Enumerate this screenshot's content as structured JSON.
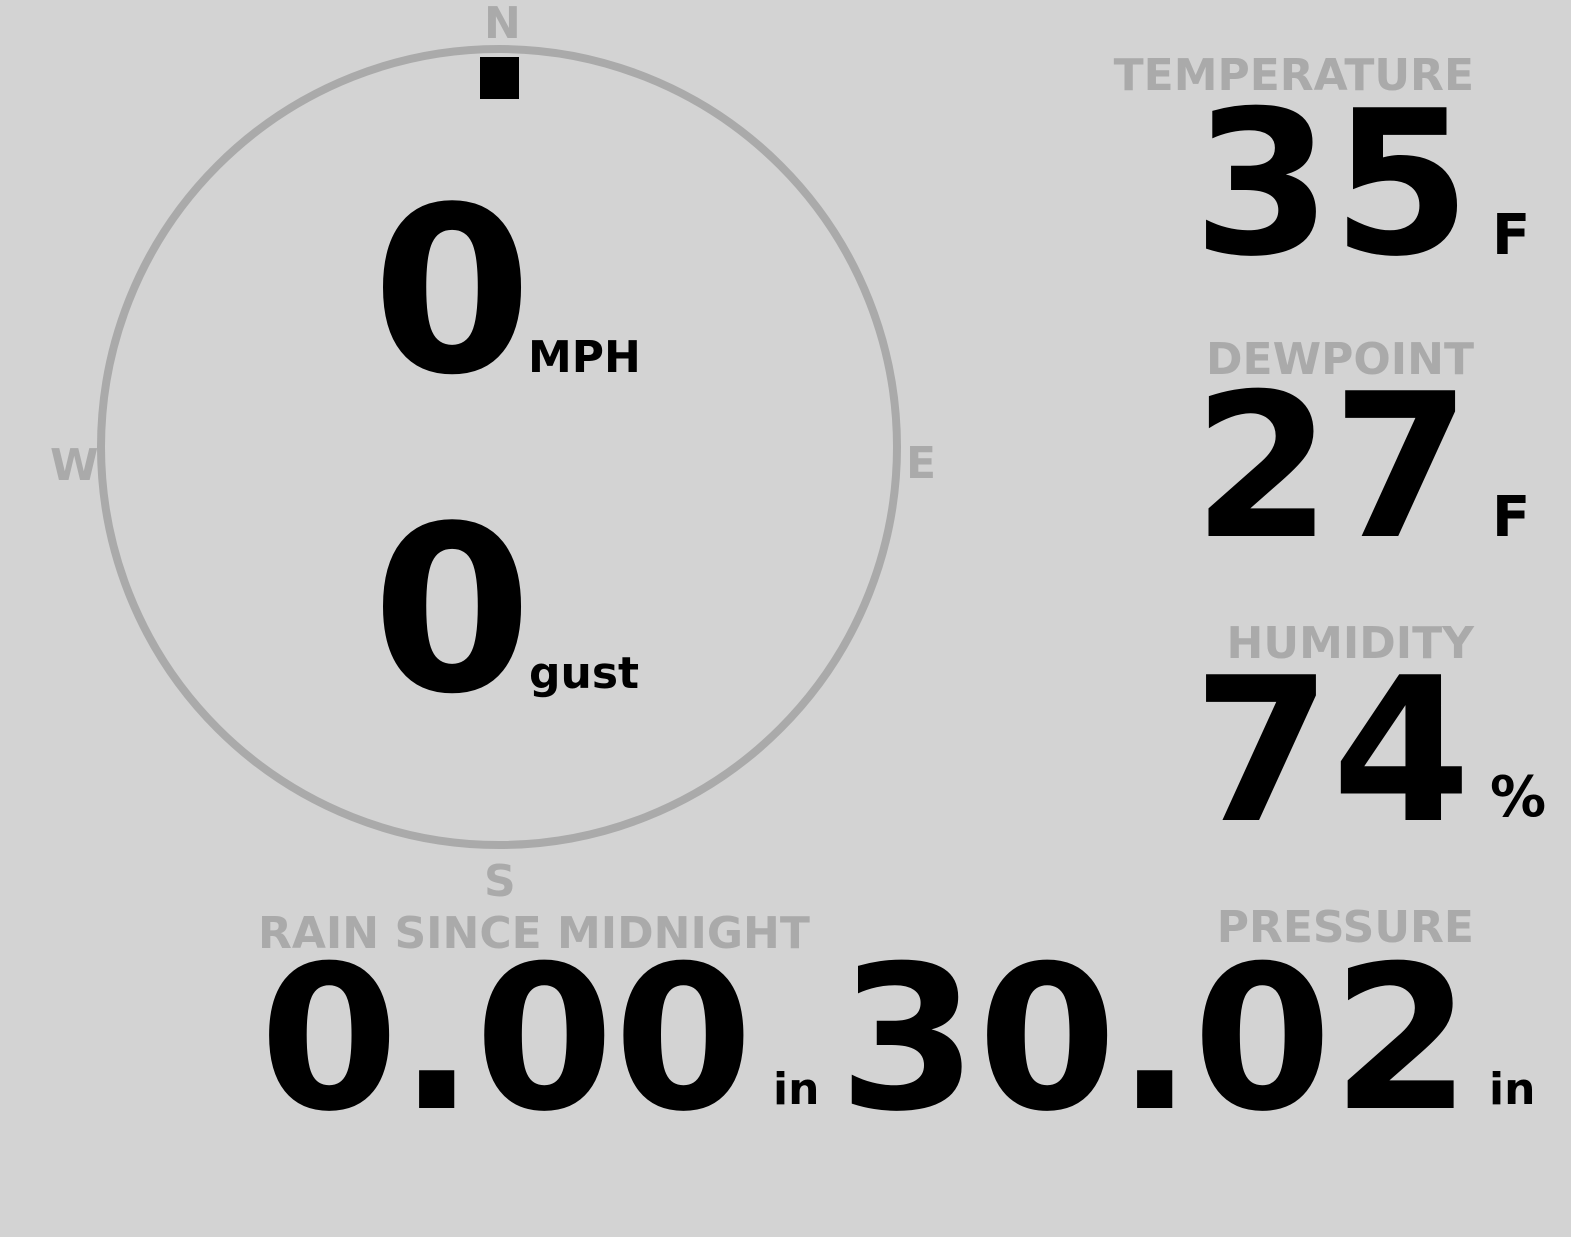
{
  "compass": {
    "north": "N",
    "south": "S",
    "east": "E",
    "west": "W",
    "wind_direction_deg": 0,
    "ring_color": "#aaaaaa",
    "indicator_color": "#000000"
  },
  "wind": {
    "speed": "0",
    "speed_unit": "MPH",
    "gust": "0",
    "gust_unit": "gust"
  },
  "temperature": {
    "label": "TEMPERATURE",
    "value": "35",
    "unit": "F"
  },
  "dewpoint": {
    "label": "DEWPOINT",
    "value": "27",
    "unit": "F"
  },
  "humidity": {
    "label": "HUMIDITY",
    "value": "74",
    "unit": "%"
  },
  "rain": {
    "label": "RAIN SINCE MIDNIGHT",
    "value": "0.00",
    "unit": "in"
  },
  "pressure": {
    "label": "PRESSURE",
    "value": "30.02",
    "unit": "in"
  }
}
